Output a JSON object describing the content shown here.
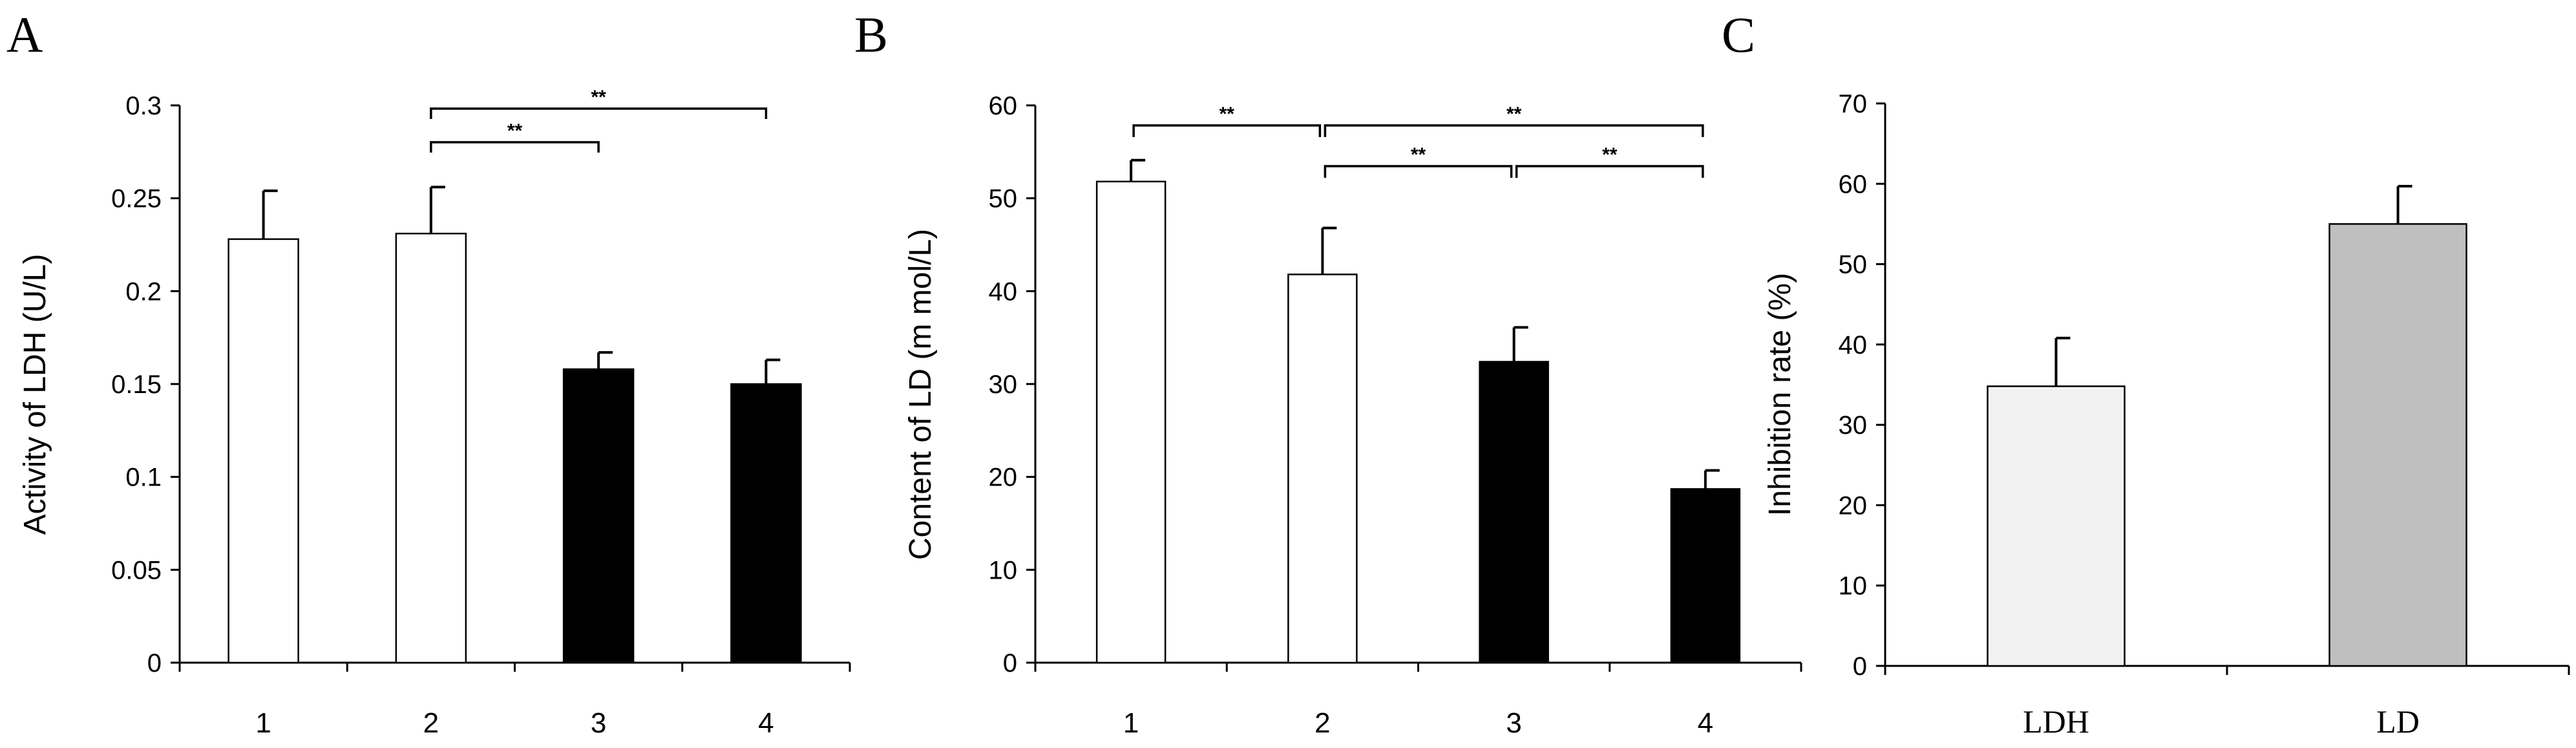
{
  "chart_data": [
    {
      "type": "bar",
      "panel": "A",
      "ylabel": "Activity of LDH (U/L)",
      "categories": [
        "1",
        "2",
        "3",
        "4"
      ],
      "values": [
        0.228,
        0.231,
        0.158,
        0.15
      ],
      "errors": [
        0.026,
        0.025,
        0.009,
        0.013
      ],
      "colors": [
        "#ffffff",
        "#ffffff",
        "#000000",
        "#000000"
      ],
      "ylim": [
        0,
        0.3
      ],
      "yticks": [
        "0",
        "0.05",
        "0.1",
        "0.15",
        "0.2",
        "0.25",
        "0.3"
      ],
      "ytick_values": [
        0,
        0.05,
        0.1,
        0.15,
        0.2,
        0.25,
        0.3
      ],
      "significance": [
        {
          "from": "2",
          "to": "4",
          "label": "**"
        },
        {
          "from": "2",
          "to": "3",
          "label": "**"
        }
      ]
    },
    {
      "type": "bar",
      "panel": "B",
      "ylabel": "Content of LD (m mol/L)",
      "categories": [
        "1",
        "2",
        "3",
        "4"
      ],
      "values": [
        51.8,
        41.8,
        32.4,
        18.7
      ],
      "errors": [
        2.3,
        5.0,
        3.7,
        2.0
      ],
      "colors": [
        "#ffffff",
        "#ffffff",
        "#000000",
        "#000000"
      ],
      "ylim": [
        0,
        60
      ],
      "yticks": [
        "0",
        "10",
        "20",
        "30",
        "40",
        "50",
        "60"
      ],
      "ytick_values": [
        0,
        10,
        20,
        30,
        40,
        50,
        60
      ],
      "significance": [
        {
          "from": "1",
          "to": "2",
          "label": "**"
        },
        {
          "from": "2",
          "to": "4",
          "label": "**"
        },
        {
          "from": "2",
          "to": "3",
          "label": "**"
        },
        {
          "from": "3",
          "to": "4",
          "label": "**"
        }
      ]
    },
    {
      "type": "bar",
      "panel": "C",
      "ylabel": "Inhibition rate (%)",
      "categories": [
        "LDH",
        "LD"
      ],
      "values": [
        34.8,
        55.0
      ],
      "errors": [
        6.0,
        4.7
      ],
      "colors": [
        "#f2f2f2",
        "#bfbfbf"
      ],
      "ylim": [
        0,
        70
      ],
      "yticks": [
        "0",
        "10",
        "20",
        "30",
        "40",
        "50",
        "60",
        "70"
      ],
      "ytick_values": [
        0,
        10,
        20,
        30,
        40,
        50,
        60,
        70
      ],
      "significance": []
    }
  ]
}
